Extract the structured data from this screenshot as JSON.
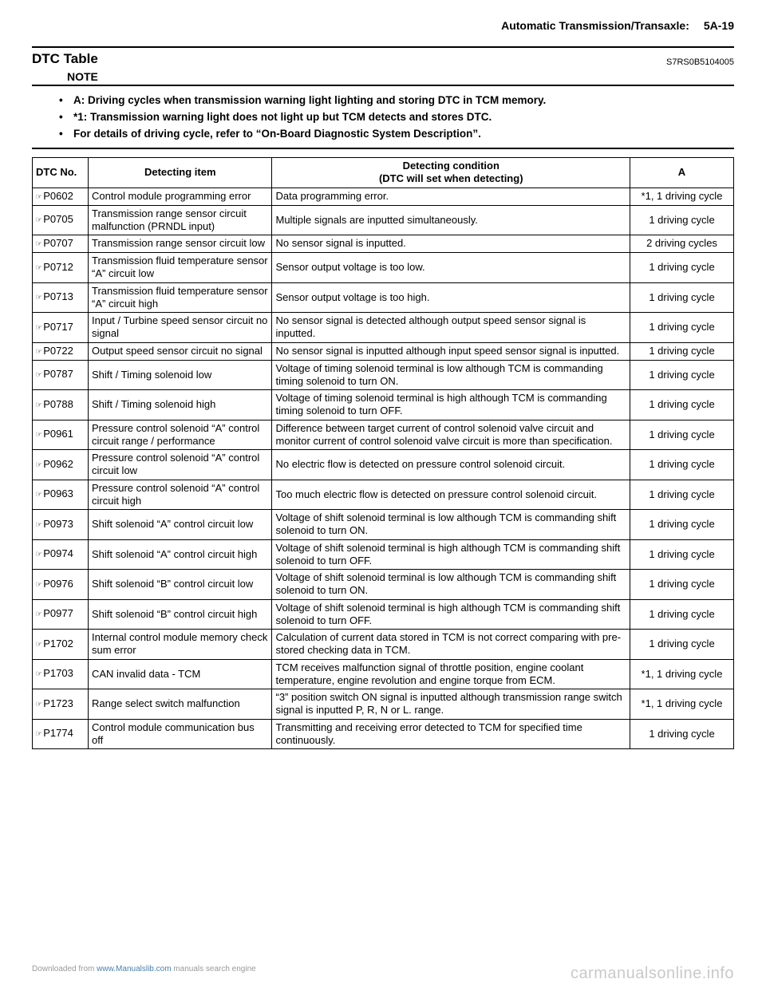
{
  "header": {
    "section": "Automatic Transmission/Transaxle:",
    "page": "5A-19"
  },
  "title": "DTC Table",
  "docId": "S7RS0B5104005",
  "noteLabel": "NOTE",
  "notes": [
    "A: Driving cycles when transmission warning light lighting and storing DTC in TCM memory.",
    "*1: Transmission warning light does not light up but TCM detects and stores DTC.",
    "For details of driving cycle, refer to “On-Board Diagnostic System Description”."
  ],
  "table": {
    "headers": {
      "dtc": "DTC No.",
      "item": "Detecting item",
      "cond": "Detecting condition\n(DTC will set when detecting)",
      "a": "A"
    },
    "rows": [
      {
        "dtc": "P0602",
        "item": "Control module programming error",
        "cond": "Data programming error.",
        "a": "*1, 1 driving cycle"
      },
      {
        "dtc": "P0705",
        "item": "Transmission range sensor circuit malfunction (PRNDL input)",
        "cond": "Multiple signals are inputted simultaneously.",
        "a": "1 driving cycle"
      },
      {
        "dtc": "P0707",
        "item": "Transmission range sensor circuit low",
        "cond": "No sensor signal is inputted.",
        "a": "2 driving cycles"
      },
      {
        "dtc": "P0712",
        "item": "Transmission fluid temperature sensor “A” circuit low",
        "cond": "Sensor output voltage is too low.",
        "a": "1 driving cycle"
      },
      {
        "dtc": "P0713",
        "item": "Transmission fluid temperature sensor “A” circuit high",
        "cond": "Sensor output voltage is too high.",
        "a": "1 driving cycle"
      },
      {
        "dtc": "P0717",
        "item": "Input / Turbine speed sensor circuit no signal",
        "cond": "No sensor signal is detected although output speed sensor signal is inputted.",
        "a": "1 driving cycle"
      },
      {
        "dtc": "P0722",
        "item": "Output speed sensor circuit no signal",
        "cond": "No sensor signal is inputted although input speed sensor signal is inputted.",
        "a": "1 driving cycle"
      },
      {
        "dtc": "P0787",
        "item": "Shift / Timing solenoid low",
        "cond": "Voltage of timing solenoid terminal is low although TCM is commanding timing solenoid to turn ON.",
        "a": "1 driving cycle"
      },
      {
        "dtc": "P0788",
        "item": "Shift / Timing solenoid high",
        "cond": "Voltage of timing solenoid terminal is high although TCM is commanding timing solenoid to turn OFF.",
        "a": "1 driving cycle"
      },
      {
        "dtc": "P0961",
        "item": "Pressure control solenoid “A” control circuit range / performance",
        "cond": "Difference between target current of control solenoid valve circuit and monitor current of control solenoid valve circuit is more than specification.",
        "a": "1 driving cycle"
      },
      {
        "dtc": "P0962",
        "item": "Pressure control solenoid “A” control circuit low",
        "cond": "No electric flow is detected on pressure control solenoid circuit.",
        "a": "1 driving cycle"
      },
      {
        "dtc": "P0963",
        "item": "Pressure control solenoid “A” control circuit high",
        "cond": "Too much electric flow is detected on pressure control solenoid circuit.",
        "a": "1 driving cycle"
      },
      {
        "dtc": "P0973",
        "item": "Shift solenoid “A” control circuit low",
        "cond": "Voltage of shift solenoid terminal is low although TCM is commanding shift solenoid to turn ON.",
        "a": "1 driving cycle"
      },
      {
        "dtc": "P0974",
        "item": "Shift solenoid “A” control circuit high",
        "cond": "Voltage of shift solenoid terminal is high although TCM is commanding shift solenoid to turn OFF.",
        "a": "1 driving cycle"
      },
      {
        "dtc": "P0976",
        "item": "Shift solenoid “B” control circuit low",
        "cond": "Voltage of shift solenoid terminal is low although TCM is commanding shift solenoid to turn ON.",
        "a": "1 driving cycle"
      },
      {
        "dtc": "P0977",
        "item": "Shift solenoid “B” control circuit high",
        "cond": "Voltage of shift solenoid terminal is high although TCM is commanding shift solenoid to turn OFF.",
        "a": "1 driving cycle"
      },
      {
        "dtc": "P1702",
        "item": "Internal control module memory check sum error",
        "cond": "Calculation of current data stored in TCM is not correct comparing with pre-stored checking data in TCM.",
        "a": "1 driving cycle"
      },
      {
        "dtc": "P1703",
        "item": "CAN invalid data - TCM",
        "cond": "TCM receives malfunction signal of throttle position, engine coolant temperature, engine revolution and engine torque from ECM.",
        "a": "*1, 1 driving cycle"
      },
      {
        "dtc": "P1723",
        "item": "Range select switch malfunction",
        "cond": "“3” position switch ON signal is inputted although transmission range switch signal is inputted P, R, N or L. range.",
        "a": "*1, 1 driving cycle"
      },
      {
        "dtc": "P1774",
        "item": "Control module communication bus off",
        "cond": "Transmitting and receiving error detected to TCM for specified time continuously.",
        "a": "1 driving cycle"
      }
    ]
  },
  "footer": {
    "left_pre": "Downloaded from ",
    "left_link": "www.Manualslib.com",
    "left_post": " manuals search engine",
    "right": "carmanualsonline.info"
  },
  "glyph": "☞"
}
